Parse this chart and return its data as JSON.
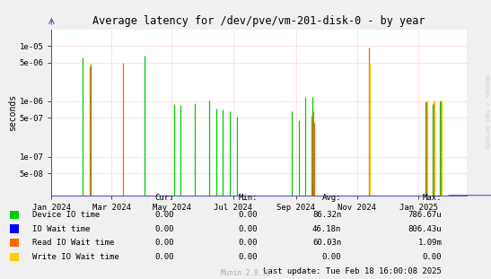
{
  "title": "Average latency for /dev/pve/vm-201-disk-0 - by year",
  "ylabel": "seconds",
  "background_color": "#f0f0f0",
  "plot_bg_color": "#ffffff",
  "grid_color": "#ffaaaa",
  "watermark": "RRDTOOL / TOBI OETIKER",
  "footer": "Munin 2.0.75",
  "last_update": "Last update: Tue Feb 18 16:00:08 2025",
  "legend": [
    {
      "label": "Device IO time",
      "color": "#00cc00"
    },
    {
      "label": "IO Wait time",
      "color": "#0000ff"
    },
    {
      "label": "Read IO Wait time",
      "color": "#ff6600"
    },
    {
      "label": "Write IO Wait time",
      "color": "#ffcc00"
    }
  ],
  "legend_stats": {
    "headers": [
      "Cur:",
      "Min:",
      "Avg:",
      "Max:"
    ],
    "rows": [
      [
        "0.00",
        "0.00",
        "86.32n",
        "786.67u"
      ],
      [
        "0.00",
        "0.00",
        "46.18n",
        "806.43u"
      ],
      [
        "0.00",
        "0.00",
        "60.03n",
        "1.09m"
      ],
      [
        "0.00",
        "0.00",
        "0.00",
        "0.00"
      ]
    ]
  },
  "xlim_start": 1704067200,
  "xlim_end": 1739836800,
  "ylim": [
    2e-08,
    2e-05
  ],
  "yticks": [
    5e-08,
    1e-07,
    5e-07,
    1e-06,
    5e-06,
    1e-05
  ],
  "ytick_labels": [
    "5e-08",
    "1e-07",
    "5e-07",
    "1e-06",
    "5e-06",
    "1e-05"
  ],
  "xticks": [
    1704067200,
    1709251200,
    1714435200,
    1719705600,
    1725148800,
    1730419200,
    1735689600
  ],
  "xtick_labels": [
    "Jan 2024",
    "Mar 2024",
    "May 2024",
    "Jul 2024",
    "Sep 2024",
    "Nov 2024",
    "Jan 2025"
  ],
  "series": [
    {
      "name": "Device IO time",
      "color": "#00cc00",
      "spikes": [
        [
          1706745600,
          6.1e-06
        ],
        [
          1707436800,
          4.8e-06
        ],
        [
          1712102400,
          6.7e-06
        ],
        [
          1714608000,
          9e-07
        ],
        [
          1715212800,
          8.5e-07
        ],
        [
          1716422400,
          9.2e-07
        ],
        [
          1717632000,
          1.05e-06
        ],
        [
          1718236800,
          7.5e-07
        ],
        [
          1718841600,
          7e-07
        ],
        [
          1719446400,
          6.5e-07
        ],
        [
          1720051200,
          5.2e-07
        ],
        [
          1724803200,
          6.5e-07
        ],
        [
          1725408000,
          4.6e-07
        ],
        [
          1725926400,
          1.2e-06
        ],
        [
          1726531200,
          1.2e-06
        ],
        [
          1736294400,
          9.5e-07
        ],
        [
          1736899200,
          9e-07
        ],
        [
          1737504000,
          9.8e-07
        ]
      ]
    },
    {
      "name": "IO Wait time",
      "color": "#0000ff",
      "spikes": [
        [
          1726617600,
          3e-08
        ]
      ]
    },
    {
      "name": "Read IO Wait time",
      "color": "#ff6600",
      "spikes": [
        [
          1707350400,
          4.3e-06
        ],
        [
          1710201600,
          5e-06
        ],
        [
          1726444800,
          5.5e-07
        ],
        [
          1726617600,
          6.5e-07
        ],
        [
          1726704000,
          4e-07
        ],
        [
          1731456000,
          9.2e-06
        ],
        [
          1736380800,
          1e-06
        ],
        [
          1736985600,
          1e-06
        ],
        [
          1737590400,
          1.05e-06
        ]
      ]
    },
    {
      "name": "Write IO Wait time",
      "color": "#ffcc00",
      "spikes": [
        [
          1731542400,
          4.8e-06
        ],
        [
          1736467200,
          1.05e-06
        ],
        [
          1737072000,
          1.05e-06
        ],
        [
          1737676800,
          1.05e-06
        ]
      ]
    }
  ]
}
